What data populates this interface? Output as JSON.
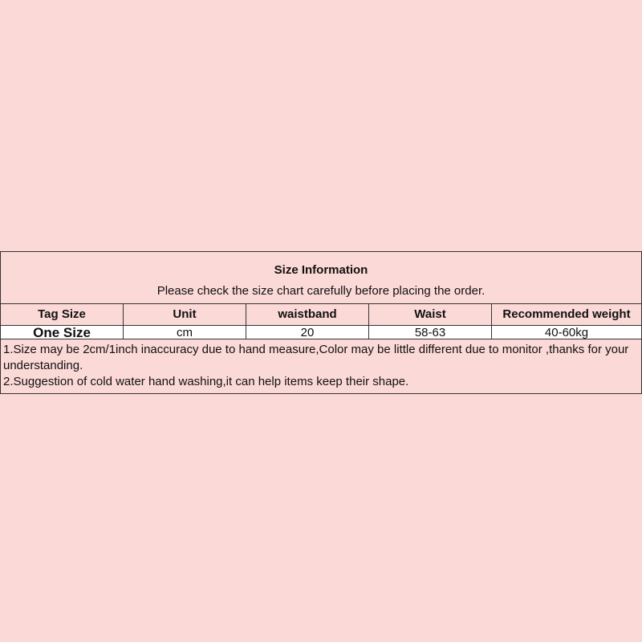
{
  "title": "Size Information",
  "subtitle": "Please check the size chart carefully before placing the order.",
  "headers": [
    "Tag Size",
    "Unit",
    "waistband",
    "Waist",
    "Recommended weight"
  ],
  "rows": [
    [
      "One Size",
      "cm",
      "20",
      "58-63",
      "40-60kg"
    ]
  ],
  "notes": [
    "1.Size may be 2cm/1inch inaccuracy due to hand measure,Color may be little different due to monitor ,thanks for your understanding.",
    "2.Suggestion of cold water hand washing,it can help items keep their shape."
  ],
  "colors": {
    "background": "#fbd9d7",
    "data_row": "#ffffff",
    "border": "#333333"
  }
}
